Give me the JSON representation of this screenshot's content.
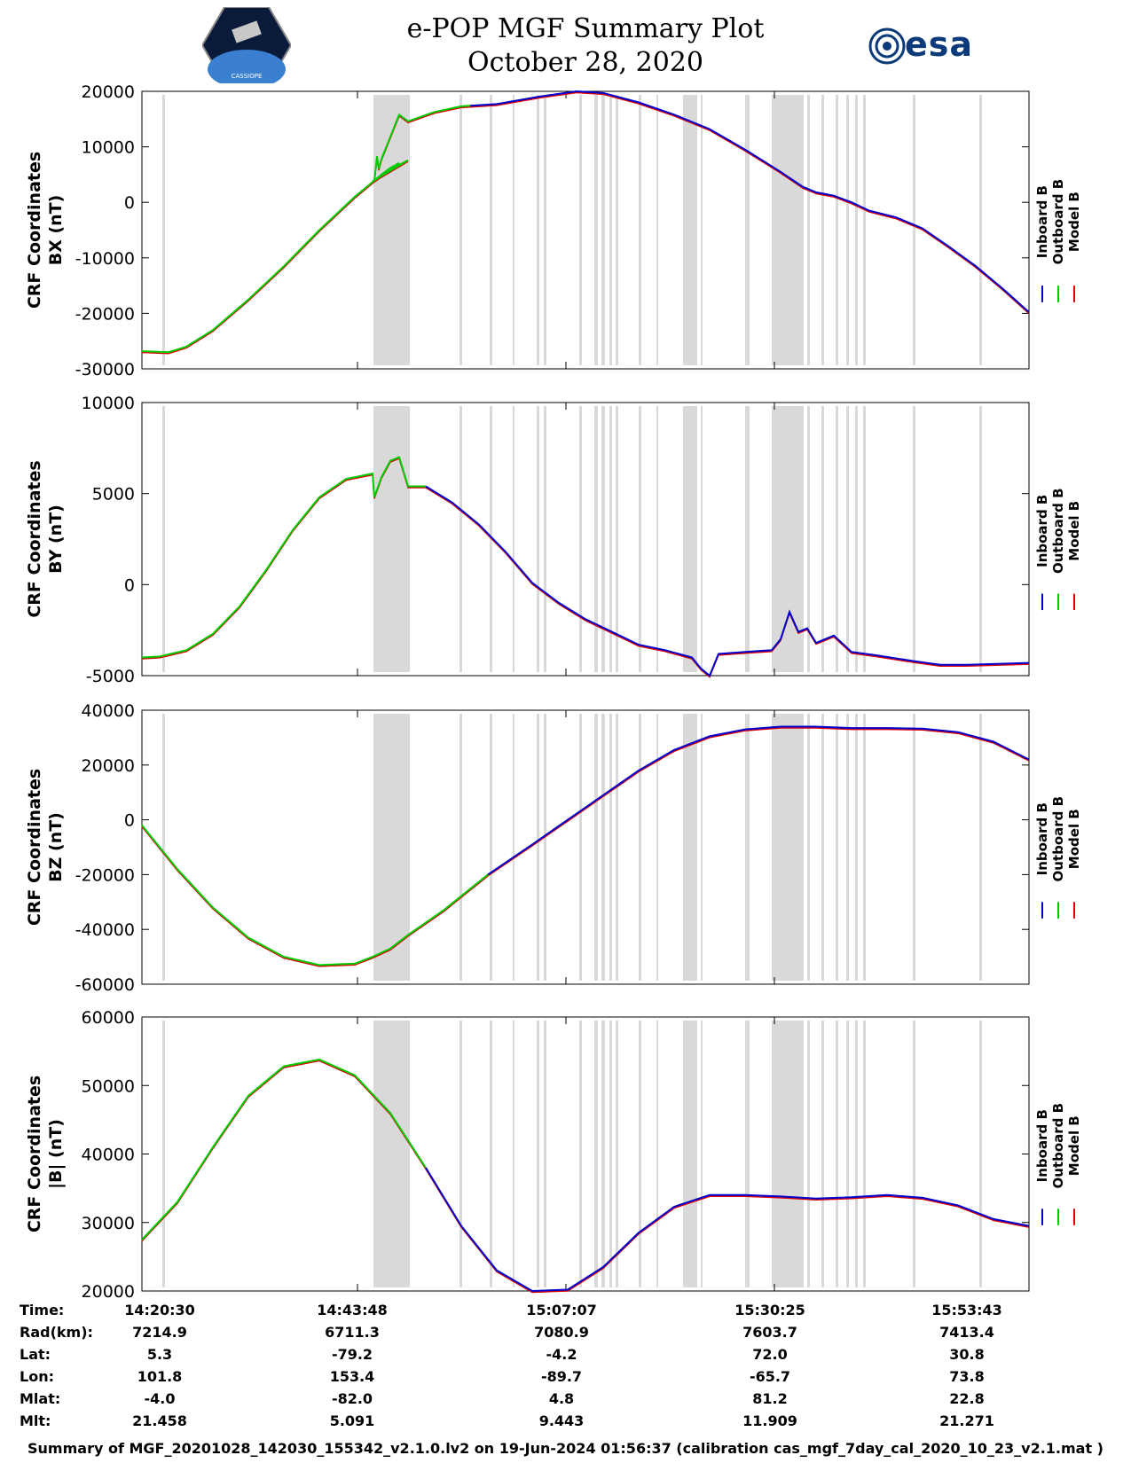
{
  "header": {
    "title_line1": "e-POP MGF Summary Plot",
    "title_line2": "October 28, 2020",
    "logo_left_label": "CASSIOPE",
    "logo_right_label": "esa"
  },
  "legend": [
    "Inboard B",
    "Outboard B",
    "Model B"
  ],
  "colors": {
    "inboard": "#0000cc",
    "outboard": "#00cc00",
    "model": "#e00000",
    "gap": "#d9d9d9"
  },
  "chart_data": [
    {
      "type": "line",
      "ylabel_line1": "CRF Coordinates",
      "ylabel_line2": "BX (nT)",
      "ylim": [
        -30000,
        20000
      ],
      "yticks": [
        -30000,
        -20000,
        -10000,
        0,
        10000,
        20000
      ],
      "ytick_labels": [
        "-30000",
        "-20000",
        "-10000",
        "0",
        "10000",
        "20000"
      ],
      "green_until": 0.37,
      "series_pts": [
        [
          0,
          -26800
        ],
        [
          0.03,
          -27000
        ],
        [
          0.05,
          -26000
        ],
        [
          0.08,
          -23000
        ],
        [
          0.12,
          -17500
        ],
        [
          0.16,
          -11500
        ],
        [
          0.2,
          -5000
        ],
        [
          0.24,
          1000
        ],
        [
          0.27,
          5000
        ],
        [
          0.3,
          7600
        ],
        [
          0.26,
          3800
        ],
        [
          0.265,
          4200
        ],
        [
          0.27,
          5000
        ],
        [
          0.28,
          6200
        ],
        [
          0.29,
          7100
        ],
        [
          0.262,
          3900
        ],
        [
          0.265,
          8300
        ],
        [
          0.267,
          6000
        ],
        [
          0.27,
          7800
        ],
        [
          0.29,
          15800
        ],
        [
          0.3,
          14600
        ],
        [
          0.33,
          16300
        ],
        [
          0.36,
          17300
        ],
        [
          0.37,
          17400
        ],
        [
          0.4,
          17700
        ],
        [
          0.45,
          19100
        ],
        [
          0.49,
          20000
        ],
        [
          0.52,
          19700
        ],
        [
          0.56,
          18000
        ],
        [
          0.6,
          15800
        ],
        [
          0.64,
          13200
        ],
        [
          0.68,
          9500
        ],
        [
          0.72,
          5500
        ],
        [
          0.745,
          2800
        ],
        [
          0.76,
          1800
        ],
        [
          0.78,
          1200
        ],
        [
          0.8,
          0
        ],
        [
          0.82,
          -1500
        ],
        [
          0.85,
          -2700
        ],
        [
          0.88,
          -4700
        ],
        [
          0.91,
          -8000
        ],
        [
          0.94,
          -11500
        ],
        [
          0.97,
          -15500
        ],
        [
          1.0,
          -19800
        ]
      ]
    },
    {
      "type": "line",
      "ylabel_line1": "CRF Coordinates",
      "ylabel_line2": "BY (nT)",
      "ylim": [
        -5000,
        10000
      ],
      "yticks": [
        -5000,
        0,
        5000,
        10000
      ],
      "ytick_labels": [
        "-5000",
        "0",
        "5000",
        "10000"
      ],
      "green_until": 0.33,
      "series_pts": [
        [
          0,
          -4000
        ],
        [
          0.02,
          -3950
        ],
        [
          0.05,
          -3600
        ],
        [
          0.08,
          -2700
        ],
        [
          0.11,
          -1200
        ],
        [
          0.14,
          800
        ],
        [
          0.17,
          3000
        ],
        [
          0.2,
          4800
        ],
        [
          0.23,
          5800
        ],
        [
          0.26,
          6100
        ],
        [
          0.262,
          4800
        ],
        [
          0.27,
          5900
        ],
        [
          0.28,
          6800
        ],
        [
          0.29,
          7000
        ],
        [
          0.3,
          5400
        ],
        [
          0.32,
          5400
        ],
        [
          0.35,
          4500
        ],
        [
          0.38,
          3300
        ],
        [
          0.41,
          1800
        ],
        [
          0.44,
          100
        ],
        [
          0.47,
          -1000
        ],
        [
          0.5,
          -1900
        ],
        [
          0.53,
          -2600
        ],
        [
          0.56,
          -3300
        ],
        [
          0.59,
          -3600
        ],
        [
          0.62,
          -4000
        ],
        [
          0.63,
          -4600
        ],
        [
          0.64,
          -5000
        ],
        [
          0.65,
          -3800
        ],
        [
          0.68,
          -3700
        ],
        [
          0.71,
          -3600
        ],
        [
          0.72,
          -3000
        ],
        [
          0.73,
          -1500
        ],
        [
          0.74,
          -2600
        ],
        [
          0.75,
          -2400
        ],
        [
          0.76,
          -3200
        ],
        [
          0.78,
          -2800
        ],
        [
          0.8,
          -3700
        ],
        [
          0.83,
          -3900
        ],
        [
          0.87,
          -4200
        ],
        [
          0.9,
          -4400
        ],
        [
          0.93,
          -4400
        ],
        [
          1.0,
          -4300
        ]
      ]
    },
    {
      "type": "line",
      "ylabel_line1": "CRF Coordinates",
      "ylabel_line2": "BZ (nT)",
      "ylim": [
        -60000,
        40000
      ],
      "yticks": [
        -60000,
        -40000,
        -20000,
        0,
        20000,
        40000
      ],
      "ytick_labels": [
        "-60000",
        "-40000",
        "-20000",
        "0",
        "20000",
        "40000"
      ],
      "green_until": 0.39,
      "series_pts": [
        [
          0,
          -2000
        ],
        [
          0.04,
          -18000
        ],
        [
          0.08,
          -32000
        ],
        [
          0.12,
          -43000
        ],
        [
          0.16,
          -50000
        ],
        [
          0.2,
          -53000
        ],
        [
          0.24,
          -52500
        ],
        [
          0.26,
          -50000
        ],
        [
          0.28,
          -47000
        ],
        [
          0.3,
          -42000
        ],
        [
          0.34,
          -33000
        ],
        [
          0.39,
          -20000
        ],
        [
          0.44,
          -9000
        ],
        [
          0.48,
          0
        ],
        [
          0.52,
          9000
        ],
        [
          0.56,
          18000
        ],
        [
          0.6,
          25500
        ],
        [
          0.64,
          30500
        ],
        [
          0.68,
          33000
        ],
        [
          0.72,
          34000
        ],
        [
          0.76,
          34000
        ],
        [
          0.8,
          33500
        ],
        [
          0.84,
          33500
        ],
        [
          0.88,
          33300
        ],
        [
          0.92,
          32000
        ],
        [
          0.96,
          28500
        ],
        [
          1.0,
          22000
        ]
      ]
    },
    {
      "type": "line",
      "ylabel_line1": "CRF Coordinates",
      "ylabel_line2": "|B| (nT)",
      "ylim": [
        20000,
        60000
      ],
      "yticks": [
        20000,
        30000,
        40000,
        50000,
        60000
      ],
      "ytick_labels": [
        "20000",
        "30000",
        "40000",
        "50000",
        "60000"
      ],
      "green_until": 0.35,
      "series_pts": [
        [
          0,
          27500
        ],
        [
          0.04,
          33000
        ],
        [
          0.08,
          41000
        ],
        [
          0.12,
          48500
        ],
        [
          0.16,
          52800
        ],
        [
          0.2,
          53800
        ],
        [
          0.24,
          51500
        ],
        [
          0.28,
          46000
        ],
        [
          0.32,
          38000
        ],
        [
          0.36,
          29500
        ],
        [
          0.4,
          23000
        ],
        [
          0.44,
          20000
        ],
        [
          0.48,
          20200
        ],
        [
          0.52,
          23500
        ],
        [
          0.56,
          28500
        ],
        [
          0.6,
          32300
        ],
        [
          0.64,
          34000
        ],
        [
          0.68,
          34000
        ],
        [
          0.72,
          33800
        ],
        [
          0.76,
          33500
        ],
        [
          0.8,
          33700
        ],
        [
          0.84,
          34000
        ],
        [
          0.88,
          33600
        ],
        [
          0.92,
          32500
        ],
        [
          0.96,
          30500
        ],
        [
          1.0,
          29500
        ]
      ]
    }
  ],
  "gaps": [
    [
      0.023,
      0.026
    ],
    [
      0.261,
      0.302
    ],
    [
      0.358,
      0.361
    ],
    [
      0.392,
      0.395
    ],
    [
      0.418,
      0.42
    ],
    [
      0.445,
      0.448
    ],
    [
      0.453,
      0.456
    ],
    [
      0.493,
      0.496
    ],
    [
      0.51,
      0.514
    ],
    [
      0.518,
      0.522
    ],
    [
      0.527,
      0.53
    ],
    [
      0.534,
      0.537
    ],
    [
      0.56,
      0.563
    ],
    [
      0.58,
      0.582
    ],
    [
      0.61,
      0.626
    ],
    [
      0.63,
      0.632
    ],
    [
      0.68,
      0.685
    ],
    [
      0.71,
      0.746
    ],
    [
      0.75,
      0.753
    ],
    [
      0.766,
      0.769
    ],
    [
      0.782,
      0.785
    ],
    [
      0.794,
      0.797
    ],
    [
      0.804,
      0.807
    ],
    [
      0.813,
      0.816
    ],
    [
      0.869,
      0.872
    ],
    [
      0.944,
      0.947
    ]
  ],
  "time_ticks": [
    "14:20:30",
    "14:43:48",
    "15:07:07",
    "15:30:25",
    "15:53:43"
  ],
  "info_rows": [
    {
      "label": "Time:",
      "values": [
        "14:20:30",
        "14:43:48",
        "15:07:07",
        "15:30:25",
        "15:53:43"
      ]
    },
    {
      "label": "Rad(km):",
      "values": [
        "7214.9",
        "6711.3",
        "7080.9",
        "7603.7",
        "7413.4"
      ]
    },
    {
      "label": "Lat:",
      "values": [
        "5.3",
        "-79.2",
        "-4.2",
        "72.0",
        "30.8"
      ]
    },
    {
      "label": "Lon:",
      "values": [
        "101.8",
        "153.4",
        "-89.7",
        "-65.7",
        "73.8"
      ]
    },
    {
      "label": "Mlat:",
      "values": [
        "-4.0",
        "-82.0",
        "4.8",
        "81.2",
        "22.8"
      ]
    },
    {
      "label": "Mlt:",
      "values": [
        "21.458",
        "5.091",
        "9.443",
        "11.909",
        "21.271"
      ]
    }
  ],
  "footer": "Summary of MGF_20201028_142030_155342_v2.1.0.lv2 on 19-Jun-2024 01:56:37 (calibration cas_mgf_7day_cal_2020_10_23_v2.1.mat )"
}
